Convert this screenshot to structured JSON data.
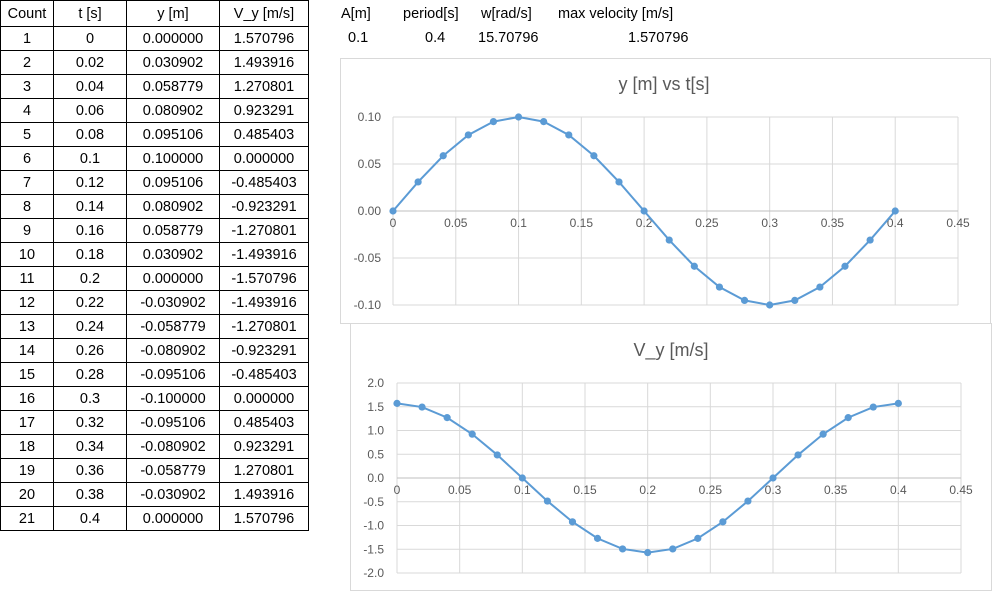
{
  "table": {
    "headers": [
      "Count",
      "t [s]",
      "y [m]",
      "V_y [m/s]"
    ],
    "rows": [
      [
        "1",
        "0",
        "0.000000",
        "1.570796"
      ],
      [
        "2",
        "0.02",
        "0.030902",
        "1.493916"
      ],
      [
        "3",
        "0.04",
        "0.058779",
        "1.270801"
      ],
      [
        "4",
        "0.06",
        "0.080902",
        "0.923291"
      ],
      [
        "5",
        "0.08",
        "0.095106",
        "0.485403"
      ],
      [
        "6",
        "0.1",
        "0.100000",
        "0.000000"
      ],
      [
        "7",
        "0.12",
        "0.095106",
        "-0.485403"
      ],
      [
        "8",
        "0.14",
        "0.080902",
        "-0.923291"
      ],
      [
        "9",
        "0.16",
        "0.058779",
        "-1.270801"
      ],
      [
        "10",
        "0.18",
        "0.030902",
        "-1.493916"
      ],
      [
        "11",
        "0.2",
        "0.000000",
        "-1.570796"
      ],
      [
        "12",
        "0.22",
        "-0.030902",
        "-1.493916"
      ],
      [
        "13",
        "0.24",
        "-0.058779",
        "-1.270801"
      ],
      [
        "14",
        "0.26",
        "-0.080902",
        "-0.923291"
      ],
      [
        "15",
        "0.28",
        "-0.095106",
        "-0.485403"
      ],
      [
        "16",
        "0.3",
        "-0.100000",
        "0.000000"
      ],
      [
        "17",
        "0.32",
        "-0.095106",
        "0.485403"
      ],
      [
        "18",
        "0.34",
        "-0.080902",
        "0.923291"
      ],
      [
        "19",
        "0.36",
        "-0.058779",
        "1.270801"
      ],
      [
        "20",
        "0.38",
        "-0.030902",
        "1.493916"
      ],
      [
        "21",
        "0.4",
        "0.000000",
        "1.570796"
      ]
    ]
  },
  "params": {
    "a_label": "A[m]",
    "period_label": "period[s]",
    "w_label": "w[rad/s]",
    "vmax_label": "max velocity [m/s]",
    "a_value": "0.1",
    "period_value": "0.4",
    "w_value": "15.70796",
    "vmax_value": "1.570796"
  },
  "colors": {
    "series": "#5b9bd5",
    "grid": "#d9d9d9",
    "axis_text": "#595959",
    "title": "#595959"
  },
  "chart_data": [
    {
      "type": "scatter",
      "title": "y [m] vs t[s]",
      "xlabel": "",
      "ylabel": "",
      "xlim": [
        0,
        0.45
      ],
      "ylim": [
        -0.1,
        0.1
      ],
      "xticks": [
        "0",
        "0.05",
        "0.1",
        "0.15",
        "0.2",
        "0.25",
        "0.3",
        "0.35",
        "0.4",
        "0.45"
      ],
      "yticks": [
        "0.10",
        "0.05",
        "0.00",
        "-0.05",
        "-0.10"
      ],
      "grid": true,
      "legend": "none",
      "lines": "straight with markers",
      "x": [
        0,
        0.02,
        0.04,
        0.06,
        0.08,
        0.1,
        0.12,
        0.14,
        0.16,
        0.18,
        0.2,
        0.22,
        0.24,
        0.26,
        0.28,
        0.3,
        0.32,
        0.34,
        0.36,
        0.38,
        0.4
      ],
      "y": [
        0,
        0.030902,
        0.058779,
        0.080902,
        0.095106,
        0.1,
        0.095106,
        0.080902,
        0.058779,
        0.030902,
        0,
        -0.030902,
        -0.058779,
        -0.080902,
        -0.095106,
        -0.1,
        -0.095106,
        -0.080902,
        -0.058779,
        -0.030902,
        0
      ]
    },
    {
      "type": "scatter",
      "title": "V_y [m/s]",
      "xlabel": "",
      "ylabel": "",
      "xlim": [
        0,
        0.45
      ],
      "ylim": [
        -2.0,
        2.0
      ],
      "xticks": [
        "0",
        "0.05",
        "0.1",
        "0.15",
        "0.2",
        "0.25",
        "0.3",
        "0.35",
        "0.4",
        "0.45"
      ],
      "yticks": [
        "2.0",
        "1.5",
        "1.0",
        "0.5",
        "0.0",
        "-0.5",
        "-1.0",
        "-1.5",
        "-2.0"
      ],
      "grid": true,
      "legend": "none",
      "lines": "straight with markers",
      "x": [
        0,
        0.02,
        0.04,
        0.06,
        0.08,
        0.1,
        0.12,
        0.14,
        0.16,
        0.18,
        0.2,
        0.22,
        0.24,
        0.26,
        0.28,
        0.3,
        0.32,
        0.34,
        0.36,
        0.38,
        0.4
      ],
      "y": [
        1.570796,
        1.493916,
        1.270801,
        0.923291,
        0.485403,
        0,
        -0.485403,
        -0.923291,
        -1.270801,
        -1.493916,
        -1.570796,
        -1.493916,
        -1.270801,
        -0.923291,
        -0.485403,
        0,
        0.485403,
        0.923291,
        1.270801,
        1.493916,
        1.570796
      ]
    }
  ]
}
